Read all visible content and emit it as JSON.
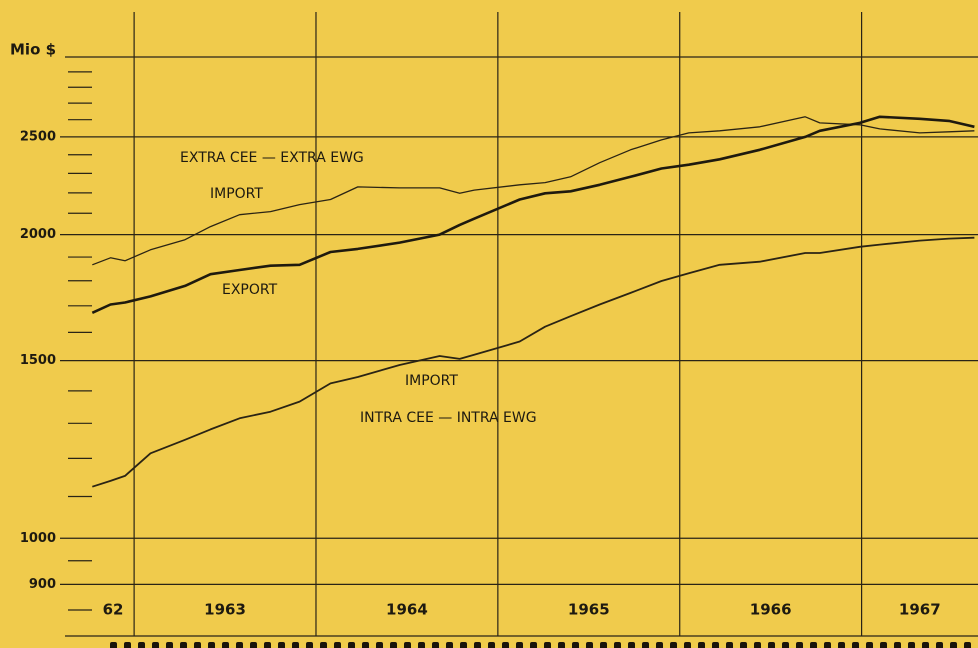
{
  "chart_data": {
    "type": "line",
    "y_label": "Mio $",
    "log_y": true,
    "ylim": [
      800,
      3000
    ],
    "yticks": [
      900,
      1000,
      1500,
      2000,
      2500
    ],
    "minor_yticks": [
      950,
      1100,
      1200,
      1300,
      1400,
      1600,
      1700,
      1800,
      1900,
      2100,
      2200,
      2300,
      2400,
      2600,
      2700,
      2800,
      2900
    ],
    "xlim": [
      1962.62,
      1967.64
    ],
    "xticks": [
      1963,
      1964,
      1965,
      1966,
      1967
    ],
    "x_labels": [
      "62",
      "1963",
      "1964",
      "1965",
      "1966",
      "1967"
    ],
    "annotations": [
      "EXTRA CEE — EXTRA EWG",
      "INTRA CEE — INTRA EWG"
    ],
    "x": [
      1962.77,
      1962.87,
      1962.95,
      1963.09,
      1963.28,
      1963.42,
      1963.58,
      1963.75,
      1963.91,
      1964.08,
      1964.23,
      1964.46,
      1964.68,
      1964.79,
      1964.87,
      1965.12,
      1965.26,
      1965.4,
      1965.56,
      1965.73,
      1965.9,
      1966.05,
      1966.22,
      1966.44,
      1966.69,
      1966.77,
      1966.99,
      1967.1,
      1967.32,
      1967.48,
      1967.62
    ],
    "series": [
      {
        "name": "IMPORT",
        "color": "#2b2414",
        "values": [
          1867,
          1897,
          1884,
          1932,
          1977,
          2037,
          2093,
          2108,
          2142,
          2167,
          2230,
          2225,
          2225,
          2198,
          2214,
          2241,
          2252,
          2282,
          2357,
          2427,
          2483,
          2523,
          2535,
          2558,
          2617,
          2581,
          2570,
          2546,
          2523,
          2529,
          2535
        ]
      },
      {
        "name": "EXPORT",
        "color": "#1f1a0e",
        "values": [
          1673,
          1705,
          1713,
          1737,
          1779,
          1827,
          1845,
          1863,
          1867,
          1922,
          1936,
          1964,
          2000,
          2045,
          2074,
          2167,
          2198,
          2208,
          2241,
          2282,
          2326,
          2346,
          2375,
          2427,
          2500,
          2535,
          2581,
          2617,
          2605,
          2593,
          2558
        ]
      },
      {
        "name": "IMPORT",
        "color": "#2b2414",
        "values": [
          1125,
          1140,
          1153,
          1214,
          1252,
          1282,
          1315,
          1335,
          1366,
          1424,
          1445,
          1485,
          1516,
          1506,
          1520,
          1567,
          1621,
          1660,
          1705,
          1751,
          1799,
          1831,
          1867,
          1880,
          1918,
          1918,
          1945,
          1955,
          1973,
          1982,
          1986
        ]
      }
    ]
  }
}
